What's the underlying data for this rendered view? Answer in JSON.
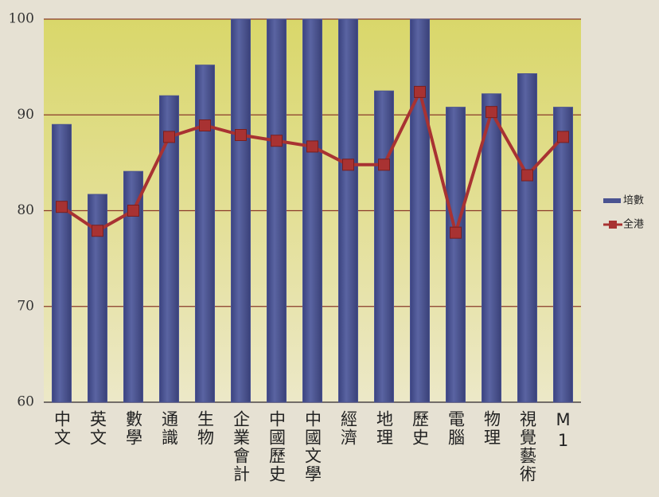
{
  "chart_data": {
    "type": "bar_line",
    "categories": [
      "中文",
      "英文",
      "數學",
      "通識",
      "生物",
      "企業會計",
      "中國歷史",
      "中國文學",
      "經濟",
      "地理",
      "歷史",
      "電腦",
      "物理",
      "視覺藝術",
      "M1"
    ],
    "series": [
      {
        "name": "培數",
        "type": "bar",
        "color": "#4a5391",
        "values": [
          89.0,
          81.7,
          84.1,
          92.0,
          95.2,
          100,
          100,
          100,
          100,
          92.5,
          100,
          90.8,
          92.2,
          94.3,
          90.8
        ]
      },
      {
        "name": "全港",
        "type": "line",
        "color": "#a83232",
        "values": [
          80.4,
          77.9,
          80.0,
          87.7,
          88.9,
          87.9,
          87.3,
          86.7,
          84.8,
          84.8,
          92.4,
          77.7,
          90.3,
          83.7,
          87.7
        ]
      }
    ],
    "ylim": [
      60,
      100
    ],
    "yticks": [
      60,
      70,
      80,
      90,
      100
    ],
    "grid": true,
    "legend": "right"
  }
}
